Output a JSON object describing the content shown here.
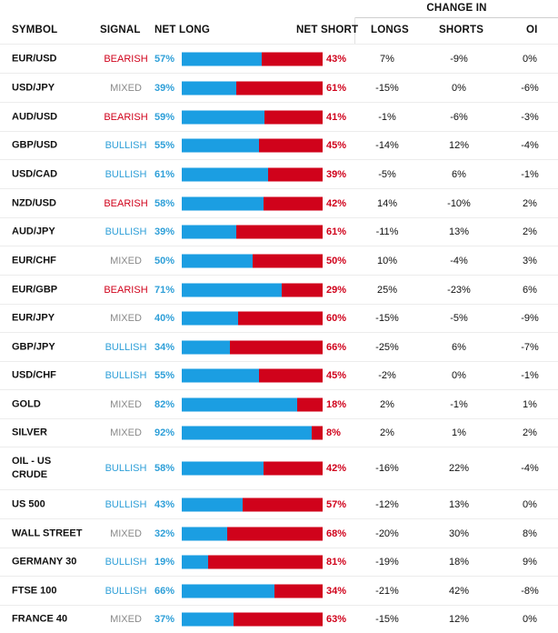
{
  "header": {
    "change_in": "CHANGE IN",
    "symbol": "SYMBOL",
    "signal": "SIGNAL",
    "net_long": "NET LONG",
    "net_short": "NET SHORT",
    "longs": "LONGS",
    "shorts": "SHORTS",
    "oi": "OI"
  },
  "colors": {
    "long_bar": "#1b9ee2",
    "short_bar": "#d0021b",
    "bearish": "#d0021b",
    "bullish": "#2e9fd8",
    "mixed": "#8a8a8a"
  },
  "rows": [
    {
      "symbol": "EUR/USD",
      "signal": "BEARISH",
      "signal_type": "bearish",
      "net_long": "57%",
      "net_short": "43%",
      "long_fraction": 0.57,
      "longs": "7%",
      "shorts": "-9%",
      "oi": "0%"
    },
    {
      "symbol": "USD/JPY",
      "signal": "MIXED",
      "signal_type": "mixed",
      "net_long": "39%",
      "net_short": "61%",
      "long_fraction": 0.39,
      "longs": "-15%",
      "shorts": "0%",
      "oi": "-6%"
    },
    {
      "symbol": "AUD/USD",
      "signal": "BEARISH",
      "signal_type": "bearish",
      "net_long": "59%",
      "net_short": "41%",
      "long_fraction": 0.59,
      "longs": "-1%",
      "shorts": "-6%",
      "oi": "-3%"
    },
    {
      "symbol": "GBP/USD",
      "signal": "BULLISH",
      "signal_type": "bullish",
      "net_long": "55%",
      "net_short": "45%",
      "long_fraction": 0.55,
      "longs": "-14%",
      "shorts": "12%",
      "oi": "-4%"
    },
    {
      "symbol": "USD/CAD",
      "signal": "BULLISH",
      "signal_type": "bullish",
      "net_long": "61%",
      "net_short": "39%",
      "long_fraction": 0.61,
      "longs": "-5%",
      "shorts": "6%",
      "oi": "-1%"
    },
    {
      "symbol": "NZD/USD",
      "signal": "BEARISH",
      "signal_type": "bearish",
      "net_long": "58%",
      "net_short": "42%",
      "long_fraction": 0.58,
      "longs": "14%",
      "shorts": "-10%",
      "oi": "2%"
    },
    {
      "symbol": "AUD/JPY",
      "signal": "BULLISH",
      "signal_type": "bullish",
      "net_long": "39%",
      "net_short": "61%",
      "long_fraction": 0.39,
      "longs": "-11%",
      "shorts": "13%",
      "oi": "2%"
    },
    {
      "symbol": "EUR/CHF",
      "signal": "MIXED",
      "signal_type": "mixed",
      "net_long": "50%",
      "net_short": "50%",
      "long_fraction": 0.5,
      "longs": "10%",
      "shorts": "-4%",
      "oi": "3%"
    },
    {
      "symbol": "EUR/GBP",
      "signal": "BEARISH",
      "signal_type": "bearish",
      "net_long": "71%",
      "net_short": "29%",
      "long_fraction": 0.71,
      "longs": "25%",
      "shorts": "-23%",
      "oi": "6%"
    },
    {
      "symbol": "EUR/JPY",
      "signal": "MIXED",
      "signal_type": "mixed",
      "net_long": "40%",
      "net_short": "60%",
      "long_fraction": 0.4,
      "longs": "-15%",
      "shorts": "-5%",
      "oi": "-9%"
    },
    {
      "symbol": "GBP/JPY",
      "signal": "BULLISH",
      "signal_type": "bullish",
      "net_long": "34%",
      "net_short": "66%",
      "long_fraction": 0.34,
      "longs": "-25%",
      "shorts": "6%",
      "oi": "-7%"
    },
    {
      "symbol": "USD/CHF",
      "signal": "BULLISH",
      "signal_type": "bullish",
      "net_long": "55%",
      "net_short": "45%",
      "long_fraction": 0.55,
      "longs": "-2%",
      "shorts": "0%",
      "oi": "-1%"
    },
    {
      "symbol": "GOLD",
      "signal": "MIXED",
      "signal_type": "mixed",
      "net_long": "82%",
      "net_short": "18%",
      "long_fraction": 0.82,
      "longs": "2%",
      "shorts": "-1%",
      "oi": "1%"
    },
    {
      "symbol": "SILVER",
      "signal": "MIXED",
      "signal_type": "mixed",
      "net_long": "92%",
      "net_short": "8%",
      "long_fraction": 0.92,
      "longs": "2%",
      "shorts": "1%",
      "oi": "2%"
    },
    {
      "symbol": "OIL - US CRUDE",
      "signal": "BULLISH",
      "signal_type": "bullish",
      "net_long": "58%",
      "net_short": "42%",
      "long_fraction": 0.58,
      "longs": "-16%",
      "shorts": "22%",
      "oi": "-4%"
    },
    {
      "symbol": "US 500",
      "signal": "BULLISH",
      "signal_type": "bullish",
      "net_long": "43%",
      "net_short": "57%",
      "long_fraction": 0.43,
      "longs": "-12%",
      "shorts": "13%",
      "oi": "0%"
    },
    {
      "symbol": "WALL STREET",
      "signal": "MIXED",
      "signal_type": "mixed",
      "net_long": "32%",
      "net_short": "68%",
      "long_fraction": 0.32,
      "longs": "-20%",
      "shorts": "30%",
      "oi": "8%"
    },
    {
      "symbol": "GERMANY 30",
      "signal": "BULLISH",
      "signal_type": "bullish",
      "net_long": "19%",
      "net_short": "81%",
      "long_fraction": 0.19,
      "longs": "-19%",
      "shorts": "18%",
      "oi": "9%"
    },
    {
      "symbol": "FTSE 100",
      "signal": "BULLISH",
      "signal_type": "bullish",
      "net_long": "66%",
      "net_short": "34%",
      "long_fraction": 0.66,
      "longs": "-21%",
      "shorts": "42%",
      "oi": "-8%"
    },
    {
      "symbol": "FRANCE 40",
      "signal": "MIXED",
      "signal_type": "mixed",
      "net_long": "37%",
      "net_short": "63%",
      "long_fraction": 0.37,
      "longs": "-15%",
      "shorts": "12%",
      "oi": "0%"
    }
  ]
}
